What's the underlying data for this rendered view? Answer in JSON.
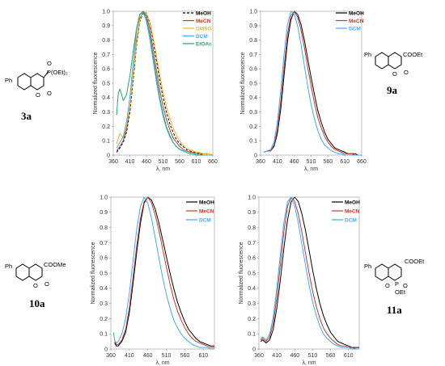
{
  "chart_data": [
    {
      "type": "line",
      "compound": "3a",
      "xlabel": "λ, nm",
      "ylabel": "Normalized fluorescence",
      "xlim": [
        360,
        660
      ],
      "ylim": [
        0,
        1.0
      ],
      "xticks": [
        360,
        410,
        460,
        510,
        560,
        610,
        660
      ],
      "yticks": [
        0,
        0.1,
        0.2,
        0.3,
        0.4,
        0.5,
        0.6,
        0.7,
        0.8,
        0.9,
        1.0
      ],
      "legend_position": "top-right",
      "series": [
        {
          "name": "MeOH",
          "color": "#000000",
          "dash": "3,2",
          "x": [
            370,
            380,
            390,
            400,
            410,
            420,
            430,
            440,
            450,
            460,
            470,
            480,
            490,
            500,
            510,
            520,
            530,
            540,
            550,
            560,
            570,
            580,
            590,
            600,
            610,
            620,
            630,
            640,
            650,
            660
          ],
          "y": [
            0.02,
            0.05,
            0.09,
            0.16,
            0.3,
            0.52,
            0.76,
            0.93,
            0.99,
            0.99,
            0.92,
            0.8,
            0.66,
            0.52,
            0.4,
            0.3,
            0.22,
            0.16,
            0.11,
            0.08,
            0.06,
            0.04,
            0.03,
            0.02,
            0.02,
            0.01,
            0.01,
            0.01,
            0.0,
            0.0
          ]
        },
        {
          "name": "MeCN",
          "color": "#c0392b",
          "x": [
            370,
            380,
            390,
            400,
            410,
            420,
            430,
            440,
            450,
            460,
            470,
            480,
            490,
            500,
            510,
            520,
            530,
            540,
            550,
            560,
            570,
            580,
            590,
            600,
            610,
            620,
            630,
            640,
            650,
            660
          ],
          "y": [
            0.03,
            0.06,
            0.1,
            0.18,
            0.33,
            0.56,
            0.8,
            0.95,
            1.0,
            0.97,
            0.88,
            0.74,
            0.59,
            0.45,
            0.34,
            0.25,
            0.18,
            0.12,
            0.09,
            0.06,
            0.04,
            0.03,
            0.02,
            0.02,
            0.01,
            0.01,
            0.0,
            0.0,
            0.0,
            0.0
          ]
        },
        {
          "name": "DMSO",
          "color": "#e8b923",
          "x": [
            370,
            380,
            390,
            400,
            410,
            420,
            430,
            440,
            450,
            460,
            470,
            480,
            490,
            500,
            510,
            520,
            530,
            540,
            550,
            560,
            570,
            580,
            590,
            600,
            610,
            620,
            630,
            640,
            650,
            660
          ],
          "y": [
            0.08,
            0.15,
            0.12,
            0.2,
            0.34,
            0.55,
            0.78,
            0.94,
            1.0,
            0.99,
            0.93,
            0.82,
            0.69,
            0.56,
            0.44,
            0.34,
            0.26,
            0.19,
            0.14,
            0.1,
            0.07,
            0.05,
            0.04,
            0.03,
            0.02,
            0.02,
            0.01,
            0.01,
            0.01,
            0.0
          ]
        },
        {
          "name": "DCM",
          "color": "#3fa9f5",
          "x": [
            370,
            380,
            390,
            400,
            410,
            420,
            430,
            440,
            450,
            460,
            470,
            480,
            490,
            500,
            510,
            520,
            530,
            540,
            550,
            560,
            570,
            580,
            590,
            600,
            610,
            620,
            630,
            640,
            650,
            660
          ],
          "y": [
            0.05,
            0.09,
            0.13,
            0.23,
            0.4,
            0.64,
            0.87,
            0.98,
            0.99,
            0.93,
            0.81,
            0.66,
            0.51,
            0.38,
            0.27,
            0.19,
            0.13,
            0.09,
            0.06,
            0.04,
            0.03,
            0.02,
            0.01,
            0.01,
            0.01,
            0.0,
            0.0,
            0.0,
            0.0,
            0.0
          ]
        },
        {
          "name": "EtOAc",
          "color": "#27a36a",
          "x": [
            370,
            375,
            380,
            385,
            390,
            400,
            410,
            420,
            430,
            440,
            450,
            460,
            470,
            480,
            490,
            500,
            510,
            520,
            530,
            540,
            550,
            560,
            570,
            580,
            590,
            600,
            610,
            620,
            630,
            640
          ],
          "y": [
            0.28,
            0.43,
            0.46,
            0.42,
            0.38,
            0.42,
            0.55,
            0.72,
            0.88,
            0.98,
            1.0,
            0.95,
            0.84,
            0.69,
            0.54,
            0.4,
            0.29,
            0.2,
            0.14,
            0.09,
            0.06,
            0.04,
            0.03,
            0.02,
            0.01,
            0.01,
            0.0,
            0.0,
            0.0,
            0.0
          ]
        }
      ]
    },
    {
      "type": "line",
      "compound": "9a",
      "xlabel": "λ, nm",
      "ylabel": "Normalized fluorescence",
      "xlim": [
        360,
        660
      ],
      "ylim": [
        0,
        1.0
      ],
      "xticks": [
        360,
        410,
        460,
        510,
        560,
        610,
        660
      ],
      "yticks": [
        0,
        0.1,
        0.2,
        0.3,
        0.4,
        0.5,
        0.6,
        0.7,
        0.8,
        0.9,
        1.0
      ],
      "legend_position": "top-right",
      "series": [
        {
          "name": "MeOH",
          "color": "#000000",
          "x": [
            370,
            380,
            390,
            400,
            410,
            420,
            430,
            440,
            450,
            460,
            470,
            480,
            490,
            500,
            510,
            520,
            530,
            540,
            550,
            560,
            570,
            580,
            590,
            600,
            610,
            620,
            630,
            640,
            650,
            660
          ],
          "y": [
            0.02,
            0.03,
            0.03,
            0.06,
            0.15,
            0.32,
            0.56,
            0.79,
            0.94,
            1.0,
            0.98,
            0.91,
            0.8,
            0.67,
            0.54,
            0.42,
            0.31,
            0.23,
            0.16,
            0.11,
            0.08,
            0.05,
            0.04,
            0.03,
            0.02,
            0.01,
            0.01,
            0.01,
            0.0,
            0.0
          ]
        },
        {
          "name": "MeCN",
          "color": "#c0392b",
          "x": [
            370,
            380,
            390,
            400,
            410,
            420,
            430,
            440,
            450,
            460,
            470,
            480,
            490,
            500,
            510,
            520,
            530,
            540,
            550,
            560,
            570,
            580,
            590,
            600,
            610,
            620,
            630,
            640,
            650,
            660
          ],
          "y": [
            0.02,
            0.03,
            0.03,
            0.07,
            0.18,
            0.37,
            0.62,
            0.84,
            0.97,
            1.0,
            0.96,
            0.87,
            0.75,
            0.61,
            0.48,
            0.36,
            0.26,
            0.19,
            0.13,
            0.09,
            0.06,
            0.04,
            0.03,
            0.02,
            0.01,
            0.01,
            0.01,
            0.0,
            0.0,
            0.0
          ]
        },
        {
          "name": "DCM",
          "color": "#3fa9f5",
          "x": [
            370,
            380,
            390,
            400,
            410,
            420,
            430,
            440,
            450,
            460,
            470,
            480,
            490,
            500,
            510,
            520,
            530,
            540,
            550,
            560,
            570,
            580,
            590,
            600,
            610,
            620,
            630,
            640,
            650,
            660
          ],
          "y": [
            0.02,
            0.03,
            0.04,
            0.09,
            0.23,
            0.45,
            0.71,
            0.91,
            1.0,
            0.98,
            0.9,
            0.77,
            0.62,
            0.48,
            0.35,
            0.25,
            0.17,
            0.11,
            0.07,
            0.05,
            0.03,
            0.02,
            0.01,
            0.01,
            0.0,
            0.0,
            0.0,
            0.0,
            0.0,
            0.0
          ]
        }
      ]
    },
    {
      "type": "line",
      "compound": "10a",
      "xlabel": "λ, nm",
      "ylabel": "Normalized fluorescence",
      "xlim": [
        360,
        640
      ],
      "ylim": [
        0,
        1.0
      ],
      "xticks": [
        360,
        410,
        460,
        510,
        560,
        610
      ],
      "yticks": [
        0,
        0.1,
        0.2,
        0.3,
        0.4,
        0.5,
        0.6,
        0.7,
        0.8,
        0.9,
        1.0
      ],
      "legend_position": "top-right",
      "series": [
        {
          "name": "MeOH",
          "color": "#000000",
          "x": [
            370,
            375,
            380,
            390,
            400,
            410,
            420,
            430,
            440,
            450,
            460,
            470,
            480,
            490,
            500,
            510,
            520,
            530,
            540,
            550,
            560,
            570,
            580,
            590,
            600,
            610,
            620,
            630,
            640
          ],
          "y": [
            0.04,
            0.02,
            0.02,
            0.05,
            0.11,
            0.24,
            0.43,
            0.64,
            0.83,
            0.96,
            1.0,
            0.98,
            0.92,
            0.83,
            0.72,
            0.61,
            0.5,
            0.4,
            0.31,
            0.24,
            0.18,
            0.13,
            0.1,
            0.07,
            0.05,
            0.04,
            0.03,
            0.02,
            0.02
          ]
        },
        {
          "name": "MeCN",
          "color": "#c0392b",
          "x": [
            370,
            375,
            380,
            390,
            400,
            410,
            420,
            430,
            440,
            450,
            460,
            470,
            480,
            490,
            500,
            510,
            520,
            530,
            540,
            550,
            560,
            570,
            580,
            590,
            600,
            610,
            620,
            630,
            640
          ],
          "y": [
            0.05,
            0.03,
            0.03,
            0.06,
            0.13,
            0.27,
            0.47,
            0.68,
            0.86,
            0.97,
            1.0,
            0.96,
            0.88,
            0.78,
            0.66,
            0.54,
            0.43,
            0.33,
            0.25,
            0.19,
            0.14,
            0.1,
            0.07,
            0.05,
            0.04,
            0.03,
            0.02,
            0.01,
            0.01
          ]
        },
        {
          "name": "DCM",
          "color": "#3fa9f5",
          "x": [
            367,
            370,
            375,
            380,
            390,
            400,
            410,
            420,
            430,
            440,
            450,
            460,
            470,
            480,
            490,
            500,
            510,
            520,
            530,
            540,
            550,
            560,
            570,
            580,
            590,
            600,
            610,
            620,
            630,
            640
          ],
          "y": [
            0.11,
            0.06,
            0.04,
            0.05,
            0.1,
            0.2,
            0.37,
            0.58,
            0.79,
            0.94,
            1.0,
            0.96,
            0.86,
            0.73,
            0.6,
            0.47,
            0.36,
            0.27,
            0.19,
            0.14,
            0.1,
            0.07,
            0.05,
            0.03,
            0.02,
            0.01,
            0.01,
            0.01,
            0.0,
            0.0
          ]
        }
      ]
    },
    {
      "type": "line",
      "compound": "11a",
      "xlabel": "λ, nm",
      "ylabel": "Normalized fluorescence",
      "xlim": [
        360,
        640
      ],
      "ylim": [
        0,
        1.0
      ],
      "xticks": [
        360,
        410,
        460,
        510,
        560,
        610
      ],
      "yticks": [
        0,
        0.1,
        0.2,
        0.3,
        0.4,
        0.5,
        0.6,
        0.7,
        0.8,
        0.9,
        1.0
      ],
      "legend_position": "top-right",
      "series": [
        {
          "name": "MeOH",
          "color": "#000000",
          "x": [
            365,
            370,
            375,
            380,
            390,
            400,
            410,
            420,
            430,
            440,
            450,
            460,
            470,
            480,
            490,
            500,
            510,
            520,
            530,
            540,
            550,
            560,
            570,
            580,
            590,
            600,
            610,
            620,
            630,
            640
          ],
          "y": [
            0.05,
            0.06,
            0.05,
            0.04,
            0.06,
            0.13,
            0.27,
            0.46,
            0.67,
            0.85,
            0.97,
            1.0,
            0.97,
            0.89,
            0.78,
            0.65,
            0.52,
            0.4,
            0.3,
            0.22,
            0.16,
            0.11,
            0.08,
            0.05,
            0.04,
            0.03,
            0.02,
            0.01,
            0.01,
            0.01
          ]
        },
        {
          "name": "MeCN",
          "color": "#c0392b",
          "x": [
            365,
            370,
            375,
            380,
            390,
            400,
            410,
            420,
            430,
            440,
            450,
            460,
            470,
            480,
            490,
            500,
            510,
            520,
            530,
            540,
            550,
            560,
            570,
            580,
            590,
            600,
            610,
            620,
            630,
            640
          ],
          "y": [
            0.06,
            0.07,
            0.06,
            0.05,
            0.08,
            0.17,
            0.34,
            0.56,
            0.78,
            0.94,
            1.0,
            0.97,
            0.89,
            0.77,
            0.63,
            0.5,
            0.38,
            0.28,
            0.2,
            0.14,
            0.1,
            0.07,
            0.05,
            0.03,
            0.02,
            0.02,
            0.01,
            0.01,
            0.0,
            0.0
          ]
        },
        {
          "name": "DCM",
          "color": "#3fa9f5",
          "x": [
            365,
            370,
            375,
            380,
            390,
            400,
            410,
            420,
            430,
            440,
            450,
            460,
            470,
            480,
            490,
            500,
            510,
            520,
            530,
            540,
            550,
            560,
            570,
            580,
            590,
            600,
            610,
            620,
            630,
            640
          ],
          "y": [
            0.07,
            0.08,
            0.07,
            0.06,
            0.1,
            0.21,
            0.4,
            0.63,
            0.84,
            0.97,
            1.0,
            0.94,
            0.83,
            0.69,
            0.55,
            0.42,
            0.31,
            0.22,
            0.15,
            0.1,
            0.07,
            0.05,
            0.03,
            0.02,
            0.01,
            0.01,
            0.01,
            0.0,
            0.0,
            0.0
          ]
        }
      ]
    }
  ],
  "structures": [
    {
      "id": "3a",
      "substituent": "P(OEt)₂",
      "aryl": "Ph",
      "oxo": "O"
    },
    {
      "id": "9a",
      "substituent": "COOEt",
      "aryl": "Ph",
      "oxo": "O"
    },
    {
      "id": "10a",
      "substituent": "COOMe",
      "aryl": "Ph",
      "oxo": "O"
    },
    {
      "id": "11a",
      "substituent": "COOEt",
      "aryl": "Ph",
      "ring_atoms": [
        "O",
        "P",
        "O",
        "OEt"
      ]
    }
  ]
}
